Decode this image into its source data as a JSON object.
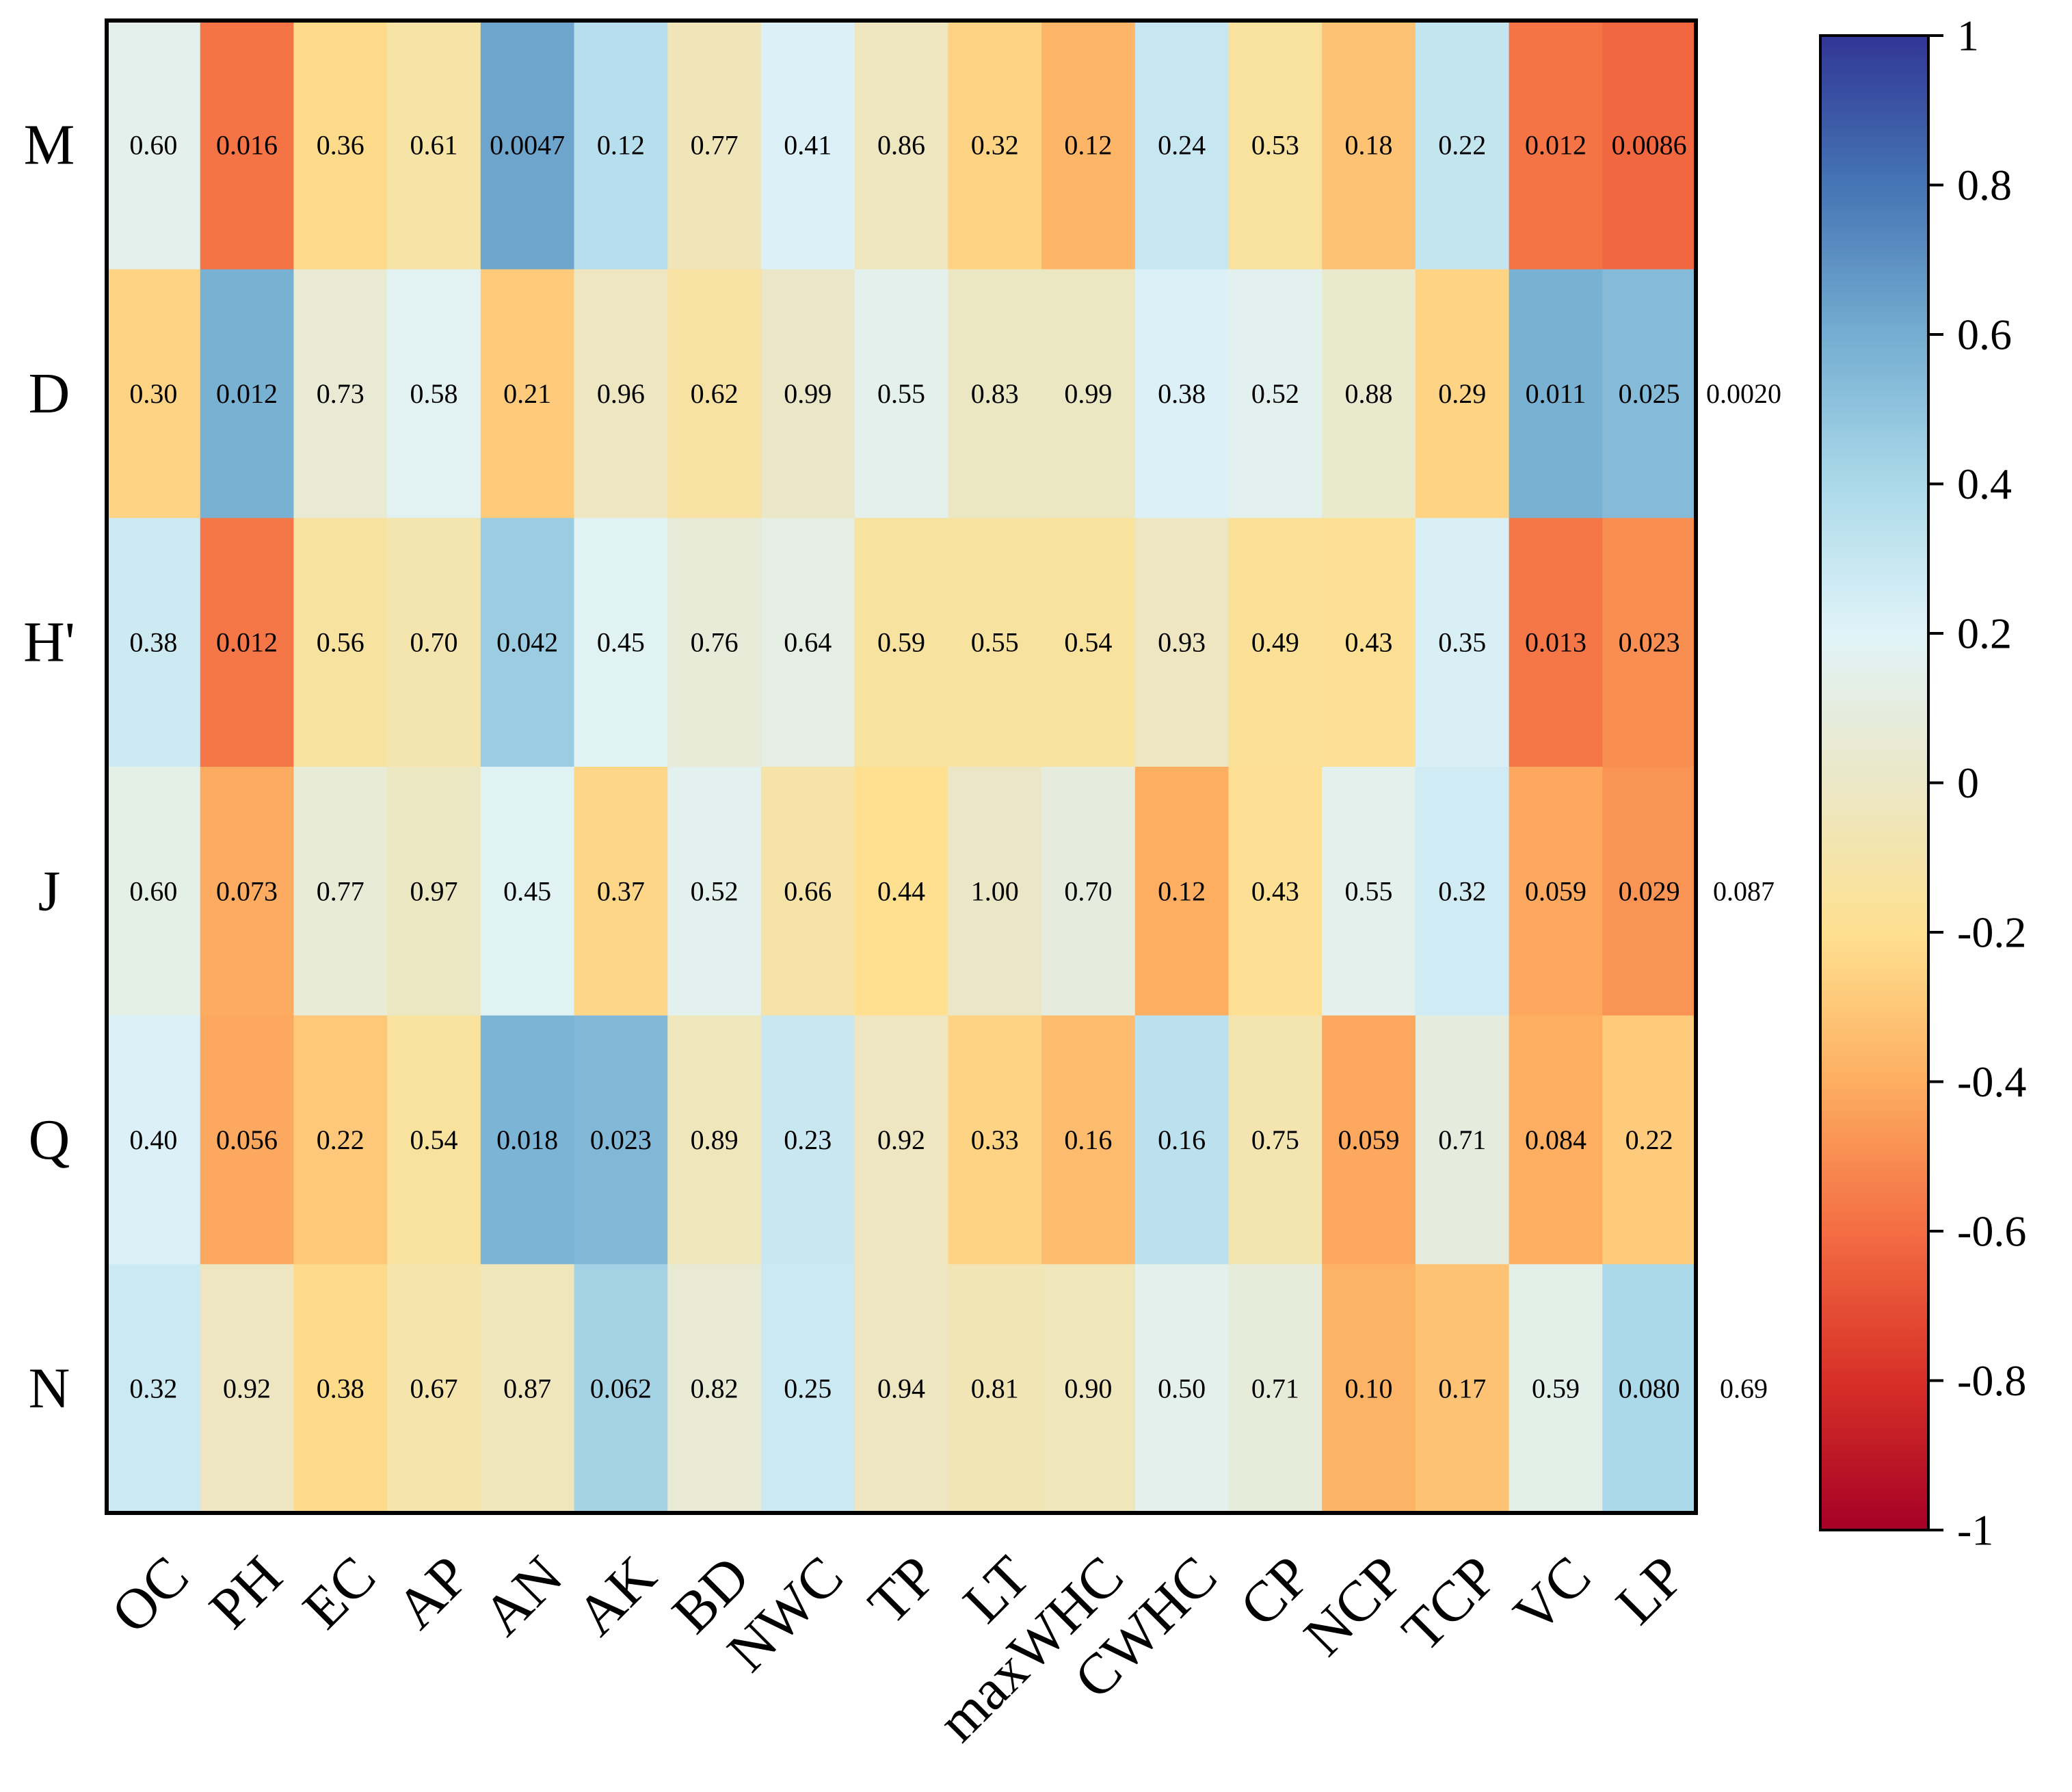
{
  "chart_data": {
    "type": "heatmap",
    "title": "",
    "xlabel": "",
    "ylabel": "",
    "x_categories": [
      "OC",
      "PH",
      "EC",
      "AP",
      "AN",
      "AK",
      "BD",
      "NWC",
      "TP",
      "LT",
      "maxWHC",
      "CWHC",
      "CP",
      "NCP",
      "TCP",
      "VC",
      "LP"
    ],
    "y_categories": [
      "M",
      "D",
      "H'",
      "J",
      "Q",
      "N"
    ],
    "color_values": [
      [
        0.15,
        -0.58,
        -0.22,
        -0.12,
        0.63,
        0.36,
        -0.05,
        0.22,
        -0.03,
        -0.25,
        -0.37,
        0.3,
        -0.15,
        -0.32,
        0.31,
        -0.58,
        -0.62
      ],
      [
        -0.25,
        0.58,
        0.05,
        0.17,
        -0.29,
        -0.02,
        -0.13,
        0.0,
        0.15,
        -0.01,
        -0.01,
        0.22,
        0.16,
        0.03,
        -0.25,
        0.58,
        0.54
      ],
      [
        0.27,
        -0.57,
        -0.14,
        -0.09,
        0.46,
        0.19,
        0.07,
        0.11,
        -0.14,
        -0.14,
        -0.15,
        -0.02,
        -0.17,
        -0.19,
        0.23,
        -0.57,
        -0.5
      ],
      [
        0.13,
        -0.41,
        0.06,
        -0.01,
        0.19,
        -0.24,
        0.16,
        -0.11,
        -0.2,
        0.0,
        0.09,
        -0.4,
        -0.19,
        0.15,
        0.26,
        -0.42,
        -0.48
      ],
      [
        0.22,
        -0.42,
        -0.3,
        -0.15,
        0.57,
        0.55,
        -0.04,
        0.29,
        -0.02,
        -0.25,
        -0.35,
        0.34,
        -0.08,
        -0.42,
        0.09,
        -0.4,
        -0.29
      ],
      [
        0.28,
        -0.02,
        -0.22,
        -0.1,
        -0.04,
        0.43,
        0.05,
        0.28,
        -0.02,
        -0.06,
        -0.04,
        0.15,
        0.08,
        -0.38,
        -0.32,
        0.14,
        0.4
      ]
    ],
    "cell_labels": [
      [
        "0.60",
        "0.016",
        "0.36",
        "0.61",
        "0.0047",
        "0.12",
        "0.77",
        "0.41",
        "0.86",
        "0.32",
        "0.12",
        "0.24",
        "0.53",
        "0.18",
        "0.22",
        "0.012",
        "0.0086"
      ],
      [
        "0.30",
        "0.012",
        "0.73",
        "0.58",
        "0.21",
        "0.96",
        "0.62",
        "0.99",
        "0.55",
        "0.83",
        "0.99",
        "0.38",
        "0.52",
        "0.88",
        "0.29",
        "0.011",
        "0.025"
      ],
      [
        "0.38",
        "0.012",
        "0.56",
        "0.70",
        "0.042",
        "0.45",
        "0.76",
        "0.64",
        "0.59",
        "0.55",
        "0.54",
        "0.93",
        "0.49",
        "0.43",
        "0.35",
        "0.013",
        "0.023"
      ],
      [
        "0.60",
        "0.073",
        "0.77",
        "0.97",
        "0.45",
        "0.37",
        "0.52",
        "0.66",
        "0.44",
        "1.00",
        "0.70",
        "0.12",
        "0.43",
        "0.55",
        "0.32",
        "0.059",
        "0.029"
      ],
      [
        "0.40",
        "0.056",
        "0.22",
        "0.54",
        "0.018",
        "0.023",
        "0.89",
        "0.23",
        "0.92",
        "0.33",
        "0.16",
        "0.16",
        "0.75",
        "0.059",
        "0.71",
        "0.084",
        "0.22"
      ],
      [
        "0.32",
        "0.92",
        "0.38",
        "0.67",
        "0.87",
        "0.062",
        "0.82",
        "0.25",
        "0.94",
        "0.81",
        "0.90",
        "0.50",
        "0.71",
        "0.10",
        "0.17",
        "0.59",
        "0.080"
      ]
    ],
    "overflow_labels": [
      "",
      "0.0020",
      "",
      "0.087",
      "",
      "0.69"
    ],
    "colorbar": {
      "range": [
        -1,
        1
      ],
      "ticks": [
        1,
        0.8,
        0.6,
        0.4,
        0.2,
        0,
        -0.2,
        -0.4,
        -0.6,
        -0.8,
        -1
      ],
      "tick_labels": [
        "1",
        "0.8",
        "0.6",
        "0.4",
        "0.2",
        "0",
        "-0.2",
        "-0.4",
        "-0.6",
        "-0.8",
        "-1"
      ],
      "colors": [
        "#a50026",
        "#d73027",
        "#f46d43",
        "#fdae61",
        "#fee090",
        "#ebe7c6",
        "#e0f3f8",
        "#abd9e9",
        "#74add1",
        "#4575b4",
        "#313695"
      ]
    },
    "grid": false,
    "legend": "colorbar-right"
  }
}
